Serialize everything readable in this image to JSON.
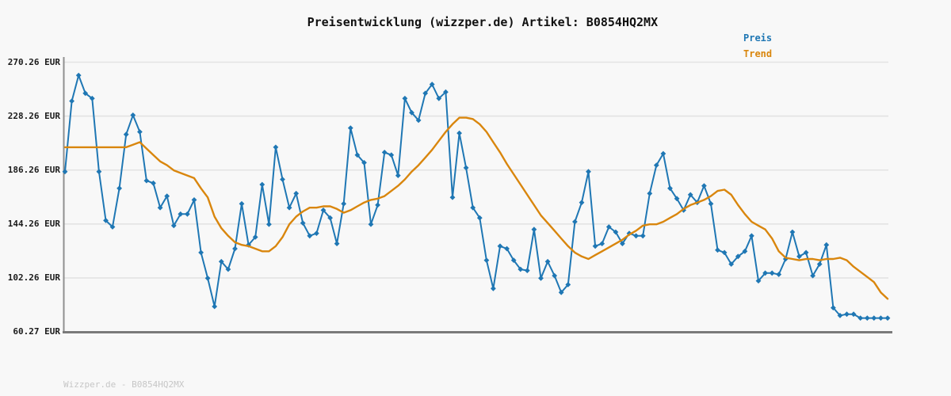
{
  "title": "Preisentwicklung (wizzper.de) Artikel: B0854HQ2MX",
  "footer": "Wizzper.de - B0854HQ2MX",
  "legend": {
    "preis_label": "Preis",
    "trend_label": "Trend"
  },
  "colors": {
    "preis": "#1f77b4",
    "trend": "#d9860d",
    "grid": "#e3e3e3",
    "left_axis": "#8f8f8f",
    "bottom_axis": "#7a7a7a",
    "background": "#f8f8f8",
    "title_text": "#111111",
    "tick_text": "#1a1a1a",
    "footer_text": "#c6c6c6"
  },
  "chart_data": {
    "type": "line",
    "title": "Preisentwicklung (wizzper.de) Artikel: B0854HQ2MX",
    "currency_unit": "EUR",
    "grid": "horizontal",
    "legend_position": "top-right",
    "ylim": [
      60.27,
      270.26
    ],
    "yticks": {
      "labels": [
        "270.26 EUR",
        "228.26 EUR",
        "186.26 EUR",
        "144.26 EUR",
        "102.26 EUR",
        "60.27 EUR"
      ],
      "values": [
        270.26,
        228.26,
        186.26,
        144.26,
        102.26,
        60.27
      ]
    },
    "series": [
      {
        "name": "Preis",
        "color": "#1f77b4",
        "marker": "diamond",
        "values": [
          185,
          240,
          260,
          246,
          242,
          185,
          147,
          142,
          172,
          214,
          229,
          216,
          178,
          176,
          157,
          166,
          143,
          152,
          152,
          163,
          122,
          102,
          80,
          115,
          109,
          125,
          160,
          128,
          134,
          175,
          144,
          204,
          179,
          157,
          168,
          145,
          135,
          137,
          155,
          149,
          129,
          160,
          219,
          198,
          192,
          144,
          159,
          200,
          198,
          182,
          242,
          231,
          225,
          246,
          253,
          242,
          247,
          165,
          215,
          188,
          157,
          149,
          116,
          94,
          127,
          125,
          116,
          109,
          108,
          140,
          102,
          115,
          104,
          91,
          97,
          146,
          161,
          185,
          127,
          129,
          142,
          138,
          129,
          137,
          135,
          135,
          168,
          190,
          199,
          172,
          164,
          155,
          167,
          161,
          174,
          160,
          124,
          122,
          113,
          119,
          123,
          135,
          100,
          106,
          106,
          105,
          117,
          138,
          119,
          122,
          104,
          113,
          128,
          79,
          73,
          74,
          74,
          71,
          71,
          71,
          71,
          71
        ]
      },
      {
        "name": "Trend",
        "color": "#d9860d",
        "marker": "none",
        "values": [
          204,
          204,
          204,
          204,
          204,
          204,
          204,
          204,
          204,
          204,
          206,
          208,
          203,
          198,
          193,
          190,
          186,
          184,
          182,
          180,
          172,
          165,
          150,
          141,
          135,
          130,
          128,
          127,
          125,
          123,
          123,
          127,
          134,
          144,
          150,
          154,
          157,
          157,
          158,
          158,
          156,
          153,
          155,
          158,
          161,
          163,
          164,
          166,
          170,
          174,
          179,
          185,
          190,
          196,
          202,
          209,
          216,
          222,
          227,
          227,
          226,
          222,
          216,
          208,
          200,
          191,
          183,
          175,
          167,
          159,
          151,
          145,
          139,
          133,
          127,
          122,
          119,
          117,
          120,
          123,
          126,
          129,
          132,
          136,
          139,
          143,
          144,
          144,
          146,
          149,
          152,
          156,
          159,
          161,
          163,
          166,
          170,
          171,
          167,
          159,
          152,
          146,
          143,
          140,
          133,
          123,
          118,
          117,
          116,
          117,
          117,
          116,
          117,
          117,
          118,
          116,
          111,
          107,
          103,
          99,
          91,
          86
        ]
      }
    ]
  }
}
